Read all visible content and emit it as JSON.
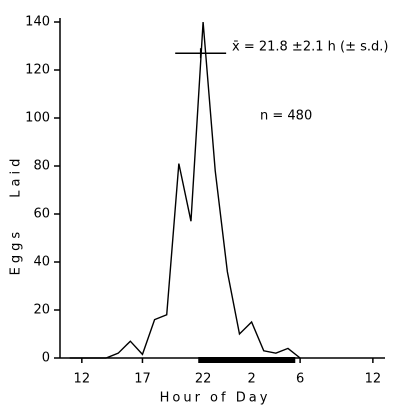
{
  "chart_data": {
    "type": "line",
    "x_label": "Hour of Day",
    "y_label": "Eggs Laid",
    "annotations": [
      "x̄ = 21.8 ±2.1 h (± s.d.)",
      "n = 480"
    ],
    "mean_bar": {
      "x": 21.8,
      "sd": 2.1,
      "y": 127
    },
    "dark_period": {
      "start": 21.6,
      "end": 29.6
    },
    "x": [
      11,
      12,
      13,
      14,
      15,
      16,
      17,
      18,
      19,
      20,
      21,
      22,
      23,
      24,
      25,
      26,
      27,
      28,
      29,
      30
    ],
    "series": [
      {
        "name": "Eggs laid",
        "color": "#000000",
        "values": [
          0,
          0,
          0,
          0,
          2,
          7,
          1.5,
          16,
          18,
          81,
          57,
          140,
          78,
          36,
          10,
          15,
          3,
          2,
          4,
          0
        ]
      }
    ],
    "xlim": [
      10.2,
      37
    ],
    "ylim": [
      0,
      140
    ],
    "xticks": [
      12,
      17,
      22,
      {
        "value": 26,
        "label": "2"
      },
      {
        "value": 30,
        "label": "6"
      },
      {
        "value": 36,
        "label": "12"
      }
    ],
    "yticks": [
      0,
      20,
      40,
      60,
      80,
      100,
      120,
      140
    ]
  }
}
